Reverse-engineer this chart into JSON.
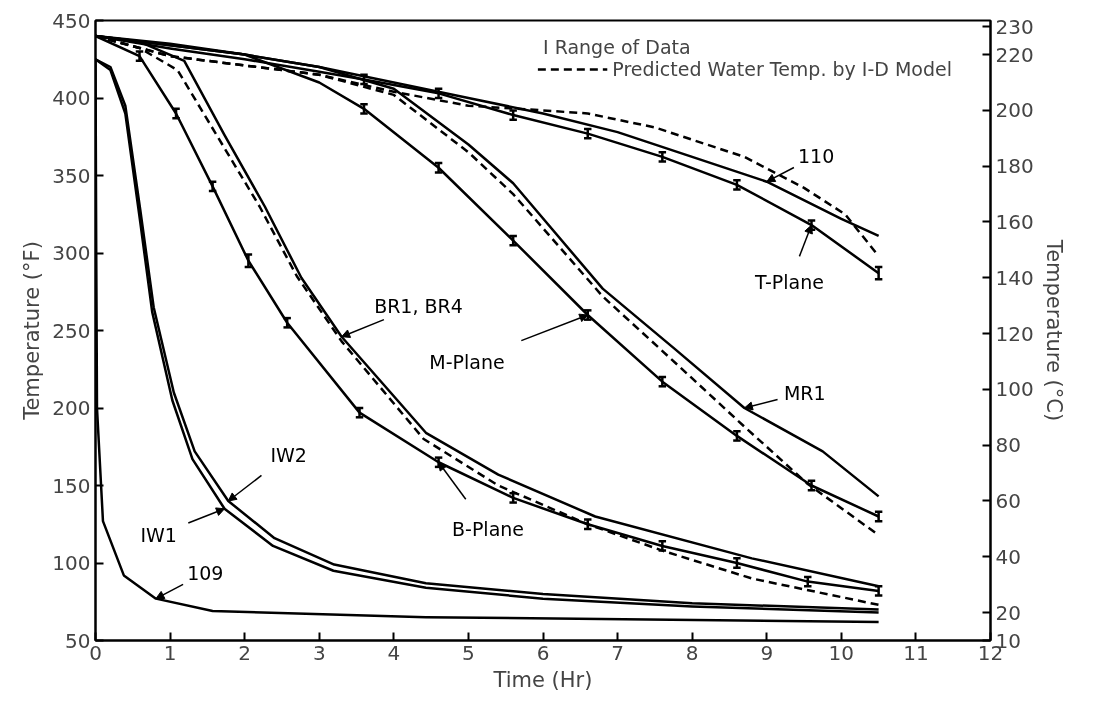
{
  "chart_data": {
    "type": "line",
    "xlabel": "Time (Hr)",
    "ylabel": "Temperature (°F)",
    "y2label": "Temperature (°C)",
    "xlim": [
      0,
      12
    ],
    "xticks": [
      0,
      1,
      2,
      3,
      4,
      5,
      6,
      7,
      8,
      9,
      10,
      11,
      12
    ],
    "ylim": [
      50,
      450
    ],
    "yticks": [
      50,
      100,
      150,
      200,
      250,
      300,
      350,
      400,
      450
    ],
    "y2lim": [
      10,
      232.2
    ],
    "y2ticks": [
      10,
      20,
      40,
      60,
      80,
      100,
      120,
      140,
      160,
      180,
      200,
      220,
      230
    ],
    "grid": false,
    "legend": "top right",
    "marker": "none",
    "series": [
      {
        "color": "#000000",
        "line_style": "solid",
        "x": [
          0,
          1,
          2,
          3,
          4,
          5,
          6,
          7,
          8,
          9,
          10,
          10.5
        ],
        "values": [
          440,
          434,
          428,
          420,
          410,
          400,
          390,
          378,
          362,
          346,
          322,
          311
        ]
      },
      {
        "color": "#000000",
        "line_style": "solid",
        "x": [
          0,
          1,
          2,
          3,
          3.6,
          4.6,
          5.6,
          6.6,
          7.6,
          8.6,
          9.6,
          10.5
        ],
        "values": [
          440,
          432,
          425,
          417,
          412,
          403,
          389,
          377,
          362,
          344,
          318,
          287
        ],
        "errors": [
          null,
          null,
          null,
          null,
          3,
          3,
          3,
          3,
          3,
          3,
          3,
          4
        ]
      },
      {
        "name": "Predicted Water Temp. by I-D Model",
        "color": "#000000",
        "line_style": "dashed",
        "x": [
          0,
          1,
          2,
          3,
          4,
          5,
          6,
          6.6,
          7.5,
          8.7,
          9.5,
          10.05,
          10.5
        ],
        "values": [
          440,
          427,
          421,
          415,
          404,
          395,
          392,
          390,
          381,
          362,
          342,
          325,
          298
        ]
      },
      {
        "color": "#000000",
        "line_style": "solid",
        "x": [
          0,
          1,
          2,
          3,
          4,
          5,
          5.6,
          6.8,
          7.77,
          8.7,
          9.75,
          10.5
        ],
        "values": [
          440,
          434,
          428,
          420,
          406,
          370,
          345,
          277,
          238,
          200,
          172,
          143
        ]
      },
      {
        "color": "#000000",
        "line_style": "solid",
        "x": [
          0,
          1,
          2,
          3,
          3.6,
          4.6,
          5.6,
          6.6,
          7.6,
          8.6,
          9.6,
          10.5
        ],
        "values": [
          440,
          435,
          428,
          410,
          393,
          355,
          308,
          260,
          217,
          182,
          150,
          130
        ],
        "errors": [
          null,
          null,
          null,
          null,
          3,
          3,
          3,
          3,
          3,
          3,
          3,
          3
        ]
      },
      {
        "color": "#000000",
        "line_style": "dashed",
        "x": [
          0,
          1,
          2,
          3,
          4,
          5,
          5.6,
          6.8,
          7.8,
          8.7,
          9.55,
          10.5
        ],
        "values": [
          440,
          427,
          421,
          415,
          402,
          365,
          338,
          272,
          228,
          188,
          151,
          118
        ]
      },
      {
        "color": "#000000",
        "line_style": "solid",
        "x": [
          0,
          0.6,
          1.19,
          1.73,
          2.27,
          2.76,
          3.3,
          4.43,
          5.4,
          6.7,
          8.8,
          10.5
        ],
        "values": [
          440,
          436,
          424,
          376,
          330,
          284,
          246,
          184,
          157,
          130,
          103,
          85
        ]
      },
      {
        "color": "#000000",
        "line_style": "solid",
        "x": [
          0,
          0.59,
          1.08,
          1.57,
          2.05,
          2.57,
          3.54,
          4.6,
          5.6,
          6.6,
          7.6,
          8.6,
          9.55,
          10.5
        ],
        "values": [
          440,
          427,
          390,
          343,
          295,
          255,
          197,
          165,
          142,
          125,
          111,
          100,
          88,
          82
        ],
        "errors": [
          null,
          3,
          3,
          3,
          4,
          3,
          3,
          3,
          3,
          3,
          3,
          3,
          3,
          3
        ]
      },
      {
        "color": "#000000",
        "line_style": "dashed",
        "x": [
          0,
          0.6,
          1.1,
          1.6,
          2.2,
          2.7,
          3.3,
          4.4,
          5.4,
          6.6,
          7.6,
          8.8,
          10.5
        ],
        "values": [
          440,
          432,
          418,
          378,
          330,
          285,
          243,
          180,
          150,
          125,
          108,
          90,
          73
        ]
      },
      {
        "color": "#000000",
        "line_style": "solid",
        "x": [
          0,
          0.2,
          0.4,
          0.6,
          0.76,
          1.03,
          1.3,
          1.73,
          2.38,
          3.19,
          4.43,
          6,
          8,
          10.5
        ],
        "values": [
          425,
          418,
          390,
          320,
          262,
          205,
          167,
          135,
          111,
          95,
          84,
          77,
          72,
          68
        ]
      },
      {
        "color": "#000000",
        "line_style": "solid",
        "x": [
          0,
          0.2,
          0.4,
          0.6,
          0.78,
          1.05,
          1.33,
          1.78,
          2.4,
          3.2,
          4.43,
          6,
          8,
          10.5
        ],
        "values": [
          425,
          420,
          395,
          328,
          265,
          210,
          172,
          140,
          116,
          99,
          87,
          80,
          74,
          70
        ]
      },
      {
        "color": "#000000",
        "line_style": "solid",
        "x": [
          0,
          0.01,
          0.02,
          0.1,
          0.38,
          0.81,
          1.57,
          4.43,
          10.5
        ],
        "values": [
          425,
          300,
          200,
          127,
          92,
          77,
          69,
          65,
          62
        ]
      }
    ],
    "annotations": [
      "I Range of Data",
      {
        "text": "110",
        "x": 9,
        "y": 346
      },
      {
        "text": "T-Plane",
        "x": 9.6,
        "y": 318
      },
      {
        "text": "M-Plane",
        "x": 6.6,
        "y": 260
      },
      {
        "text": "MR1",
        "x": 8.7,
        "y": 200
      },
      {
        "text": "BR1, BR4",
        "x": 3.3,
        "y": 246
      },
      {
        "text": "B-Plane",
        "x": 4.6,
        "y": 165
      },
      {
        "text": "IW1",
        "x": 1.73,
        "y": 135
      },
      {
        "text": "IW2",
        "x": 1.78,
        "y": 140
      },
      {
        "text": "109",
        "x": 0.81,
        "y": 77
      }
    ]
  }
}
